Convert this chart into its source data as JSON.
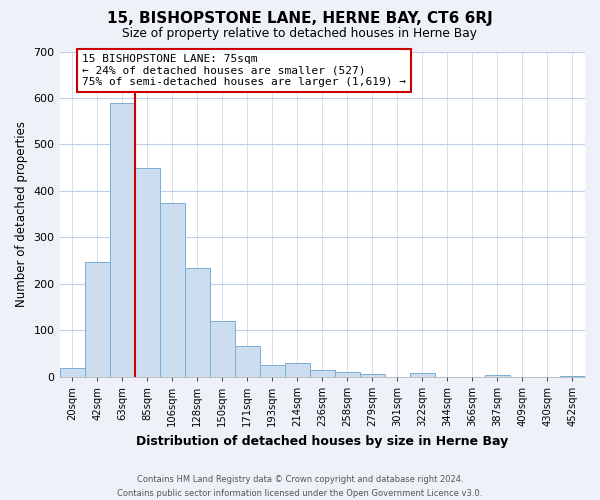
{
  "title": "15, BISHOPSTONE LANE, HERNE BAY, CT6 6RJ",
  "subtitle": "Size of property relative to detached houses in Herne Bay",
  "xlabel": "Distribution of detached houses by size in Herne Bay",
  "ylabel": "Number of detached properties",
  "footer_line1": "Contains HM Land Registry data © Crown copyright and database right 2024.",
  "footer_line2": "Contains public sector information licensed under the Open Government Licence v3.0.",
  "bin_labels": [
    "20sqm",
    "42sqm",
    "63sqm",
    "85sqm",
    "106sqm",
    "128sqm",
    "150sqm",
    "171sqm",
    "193sqm",
    "214sqm",
    "236sqm",
    "258sqm",
    "279sqm",
    "301sqm",
    "322sqm",
    "344sqm",
    "366sqm",
    "387sqm",
    "409sqm",
    "430sqm",
    "452sqm"
  ],
  "bar_heights": [
    18,
    248,
    590,
    450,
    375,
    235,
    120,
    67,
    25,
    30,
    14,
    10,
    5,
    0,
    9,
    0,
    0,
    3,
    0,
    0,
    2
  ],
  "bar_color": "#ccddf0",
  "bar_edge_color": "#7aaed4",
  "vline_x_index": 2,
  "vline_color": "#cc0000",
  "annotation_line1": "15 BISHOPSTONE LANE: 75sqm",
  "annotation_line2": "← 24% of detached houses are smaller (527)",
  "annotation_line3": "75% of semi-detached houses are larger (1,619) →",
  "annotation_box_color": "#ffffff",
  "annotation_box_edge": "#cc0000",
  "ylim": [
    0,
    700
  ],
  "yticks": [
    0,
    100,
    200,
    300,
    400,
    500,
    600,
    700
  ],
  "bg_color": "#eef2f8",
  "plot_bg_color": "#ffffff",
  "grid_color": "#c0d0e8",
  "num_bins": 21
}
